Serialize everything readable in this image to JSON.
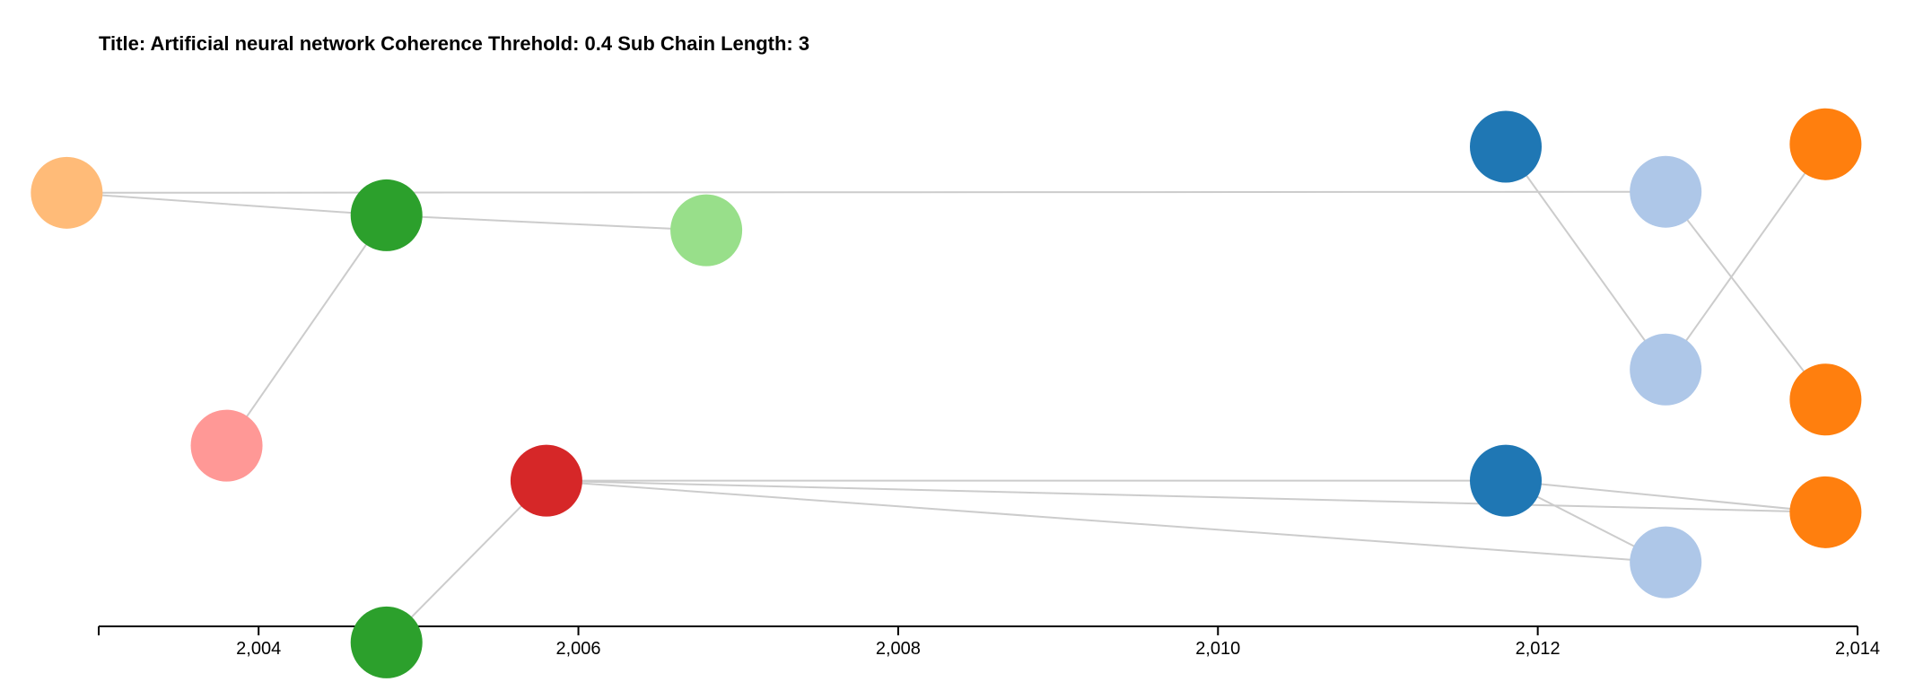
{
  "chart_data": {
    "type": "scatter",
    "title": "Title: Artificial neural network Coherence Threhold: 0.4 Sub Chain Length: 3",
    "xlabel": "",
    "ylabel": "",
    "xlim": [
      2003,
      2014
    ],
    "x_ticks": [
      2004,
      2006,
      2008,
      2010,
      2012,
      2014
    ],
    "x_tick_labels": [
      "2,004",
      "2,006",
      "2,008",
      "2,010",
      "2,012",
      "2,014"
    ],
    "grid": false,
    "nodes": [
      {
        "id": "n1",
        "x": 2002.8,
        "row": 0.152,
        "color": "#ffbb78"
      },
      {
        "id": "n2",
        "x": 2004.8,
        "row": 0.197,
        "color": "#2ca02c"
      },
      {
        "id": "n3",
        "x": 2006.8,
        "row": 0.227,
        "color": "#98df8a"
      },
      {
        "id": "n4",
        "x": 2003.8,
        "row": 0.657,
        "color": "#ff9896"
      },
      {
        "id": "n5",
        "x": 2005.8,
        "row": 0.727,
        "color": "#d62728"
      },
      {
        "id": "n6",
        "x": 2004.8,
        "row": 1.05,
        "color": "#2ca02c"
      },
      {
        "id": "n7",
        "x": 2011.8,
        "row": 0.06,
        "color": "#1f77b4"
      },
      {
        "id": "n8",
        "x": 2012.8,
        "row": 0.15,
        "color": "#aec7e8"
      },
      {
        "id": "n9",
        "x": 2013.8,
        "row": 0.055,
        "color": "#ff7f0e"
      },
      {
        "id": "n10",
        "x": 2012.8,
        "row": 0.505,
        "color": "#aec7e8"
      },
      {
        "id": "n11",
        "x": 2013.8,
        "row": 0.565,
        "color": "#ff7f0e"
      },
      {
        "id": "n12",
        "x": 2011.8,
        "row": 0.727,
        "color": "#1f77b4"
      },
      {
        "id": "n13",
        "x": 2013.8,
        "row": 0.79,
        "color": "#ff7f0e"
      },
      {
        "id": "n14",
        "x": 2012.8,
        "row": 0.89,
        "color": "#aec7e8"
      }
    ],
    "links": [
      [
        "n1",
        "n2"
      ],
      [
        "n2",
        "n3"
      ],
      [
        "n2",
        "n4"
      ],
      [
        "n1",
        "n8"
      ],
      [
        "n7",
        "n10"
      ],
      [
        "n10",
        "n9"
      ],
      [
        "n8",
        "n11"
      ],
      [
        "n6",
        "n5"
      ],
      [
        "n5",
        "n12"
      ],
      [
        "n5",
        "n13"
      ],
      [
        "n5",
        "n14"
      ],
      [
        "n12",
        "n13"
      ],
      [
        "n12",
        "n14"
      ]
    ]
  }
}
